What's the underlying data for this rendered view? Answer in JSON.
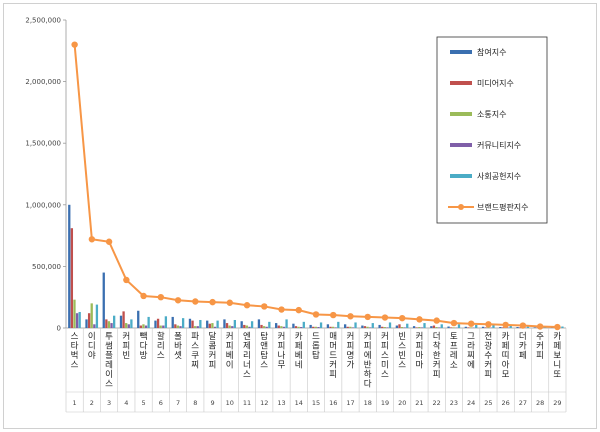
{
  "chart_data": {
    "type": "bar",
    "ylim": [
      0,
      2500000
    ],
    "yticks": [
      "0",
      "500,000",
      "1,000,000",
      "1,500,000",
      "2,000,000",
      "2,500,000"
    ],
    "grid": false,
    "legend_position": "top-right",
    "categories": [
      "스타벅스",
      "이디야",
      "투썸플레이스",
      "커피빈",
      "빽다방",
      "할리스",
      "폴바셋",
      "파스쿠찌",
      "달콤커피",
      "커피베이",
      "엔제리너스",
      "탐앤탐스",
      "커피나무",
      "카페베네",
      "드롭탑",
      "매머드커피",
      "커피명가",
      "커피에반하다",
      "커피스미스",
      "빈스빈스",
      "커피마마",
      "더착한커피",
      "토프레소",
      "그라찌에",
      "전광수커피",
      "카페띠아모",
      "더카페",
      "주커피",
      "카페보니또"
    ],
    "index_labels": [
      "1",
      "2",
      "3",
      "4",
      "5",
      "6",
      "7",
      "8",
      "9",
      "10",
      "11",
      "12",
      "13",
      "14",
      "15",
      "16",
      "17",
      "18",
      "19",
      "20",
      "21",
      "22",
      "23",
      "24",
      "25",
      "26",
      "27",
      "28",
      "29"
    ],
    "series": [
      {
        "name": "참여지수",
        "color": "#3a6fb0",
        "values": [
          1000000,
          70000,
          450000,
          100000,
          140000,
          60000,
          90000,
          75000,
          60000,
          70000,
          55000,
          70000,
          40000,
          35000,
          25000,
          30000,
          30000,
          20000,
          25000,
          20000,
          15000,
          15000,
          12000,
          10000,
          10000,
          8000,
          8000,
          5000,
          5000
        ]
      },
      {
        "name": "미디어지수",
        "color": "#c0504d",
        "values": [
          810000,
          120000,
          70000,
          135000,
          20000,
          75000,
          30000,
          60000,
          35000,
          40000,
          25000,
          25000,
          20000,
          15000,
          10000,
          10000,
          10000,
          15000,
          10000,
          30000,
          5000,
          20000,
          5000,
          5000,
          5000,
          5000,
          5000,
          3000,
          3000
        ]
      },
      {
        "name": "소통지수",
        "color": "#9bbb59",
        "values": [
          230000,
          200000,
          55000,
          40000,
          30000,
          20000,
          20000,
          15000,
          40000,
          20000,
          20000,
          15000,
          15000,
          10000,
          10000,
          10000,
          10000,
          10000,
          8000,
          8000,
          8000,
          8000,
          5000,
          5000,
          5000,
          5000,
          5000,
          3000,
          3000
        ]
      },
      {
        "name": "커뮤니티지수",
        "color": "#7f5fa8",
        "values": [
          120000,
          30000,
          40000,
          30000,
          20000,
          20000,
          15000,
          15000,
          10000,
          15000,
          10000,
          10000,
          10000,
          8000,
          8000,
          5000,
          5000,
          5000,
          5000,
          5000,
          5000,
          5000,
          3000,
          3000,
          3000,
          3000,
          3000,
          2000,
          2000
        ]
      },
      {
        "name": "사회공헌지수",
        "color": "#4bacc6",
        "values": [
          130000,
          190000,
          100000,
          70000,
          90000,
          95000,
          80000,
          65000,
          60000,
          65000,
          55000,
          50000,
          70000,
          50000,
          45000,
          50000,
          45000,
          40000,
          45000,
          35000,
          40000,
          30000,
          30000,
          25000,
          25000,
          20000,
          20000,
          15000,
          12000
        ]
      },
      {
        "name": "브랜드평판지수",
        "color": "#f79646",
        "values": [
          2300000,
          720000,
          700000,
          390000,
          260000,
          250000,
          225000,
          215000,
          210000,
          205000,
          185000,
          175000,
          150000,
          145000,
          110000,
          105000,
          95000,
          90000,
          85000,
          80000,
          70000,
          60000,
          40000,
          35000,
          30000,
          25000,
          20000,
          12000,
          8000
        ]
      }
    ]
  }
}
